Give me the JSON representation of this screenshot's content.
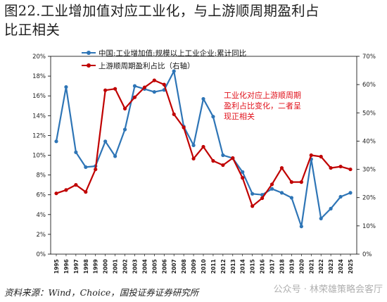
{
  "title_line1": "图22.工业增加值对应工业化，与上游顺周期盈利占",
  "title_line2": "比正相关",
  "source": "资料来源：Wind，Choice，国投证券证券研究所",
  "watermark": "公众号 · 林荣雄策略会客厅",
  "chart_data": {
    "type": "line",
    "x": [
      "1995",
      "1996",
      "1997",
      "1998",
      "1999",
      "2000",
      "2001",
      "2002",
      "2003",
      "2004",
      "2005",
      "2006",
      "2007",
      "2008",
      "2009",
      "2010",
      "2011",
      "2012",
      "2013",
      "2014",
      "2015",
      "2016",
      "2017",
      "2018",
      "2019",
      "2020",
      "2021",
      "2022",
      "2023",
      "2024",
      "2025"
    ],
    "left_axis": {
      "ylim": [
        0,
        20
      ],
      "ticks": [
        "0%",
        "2%",
        "4%",
        "6%",
        "8%",
        "10%",
        "12%",
        "14%",
        "16%",
        "18%",
        "20%"
      ]
    },
    "right_axis": {
      "ylim": [
        0,
        70
      ],
      "ticks": [
        "0%",
        "10%",
        "20%",
        "30%",
        "40%",
        "50%",
        "60%",
        "70%"
      ]
    },
    "legend_placement": "top-left",
    "grid": false,
    "annotation": [
      "工业化对应上游顺周期",
      "盈利占比变化，二者呈",
      "现正相关"
    ],
    "series": [
      {
        "name": "中国:工业增加值:规模以上工业企业:累计同比",
        "axis": "left",
        "color": "#2e75b6",
        "values": [
          11.4,
          16.9,
          10.3,
          8.8,
          8.9,
          11.4,
          9.9,
          12.6,
          17.0,
          16.7,
          16.4,
          16.6,
          18.5,
          12.9,
          11.0,
          15.7,
          13.9,
          10.0,
          9.7,
          8.3,
          6.1,
          6.0,
          6.6,
          6.2,
          5.7,
          2.8,
          9.6,
          3.6,
          4.6,
          5.8,
          6.2
        ]
      },
      {
        "name": "上游顺周期盈利占比（右轴）",
        "axis": "right",
        "color": "#c00000",
        "values": [
          21.5,
          22.7,
          24.5,
          22.0,
          30.0,
          58.0,
          58.5,
          51.5,
          55.5,
          59.0,
          61.5,
          60.0,
          49.5,
          44.8,
          33.8,
          38.0,
          33.0,
          31.5,
          34.0,
          27.0,
          17.0,
          19.8,
          24.7,
          30.5,
          25.5,
          25.5,
          35.0,
          34.5,
          30.5,
          31.0,
          30.0
        ]
      }
    ]
  }
}
